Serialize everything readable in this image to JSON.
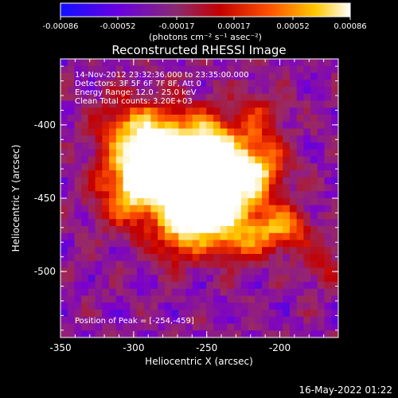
{
  "chart_data": {
    "type": "heatmap",
    "title": "Reconstructed RHESSI Image",
    "xlabel": "Heliocentric X (arcsec)",
    "ylabel": "Heliocentric Y (arcsec)",
    "xlim": [
      -350,
      -160
    ],
    "ylim": [
      -545,
      -355
    ],
    "x_ticks": [
      "-350",
      "-300",
      "-250",
      "-200"
    ],
    "x_tick_values": [
      -350,
      -300,
      -250,
      -200
    ],
    "y_ticks": [
      "-400",
      "-450",
      "-500"
    ],
    "y_tick_values": [
      -400,
      -450,
      -500
    ],
    "colorbar": {
      "colormap": "hot (blue-purple-red-orange-yellow-white)",
      "range": [
        -0.00086,
        0.00086
      ],
      "ticks": [
        "-0.00086",
        "-0.00052",
        "-0.00017",
        "0.00017",
        "0.00052",
        "0.00086"
      ],
      "tick_values": [
        -0.00086,
        -0.00052,
        -0.00017,
        0.00017,
        0.00052,
        0.00086
      ],
      "units": "(photons cm⁻² s⁻¹ asec⁻²)",
      "colors": [
        "#1010ff",
        "#7a00d0",
        "#9a2a60",
        "#c40000",
        "#ff5000",
        "#ffc800",
        "#ffffff"
      ]
    },
    "annotations": [
      "14-Nov-2012 23:32:36.000 to 23:35:00.000",
      "Detectors: 3F 5F 6F 7F 8F, Att 0",
      "Energy Range: 12.0 - 25.0 keV",
      "Clean     Total counts: 3.20E+03"
    ],
    "peak_label": "Position of Peak = [-254,-459]",
    "peak": [
      -254,
      -459
    ]
  },
  "footer": {
    "timestamp": "16-May-2022 01:22"
  }
}
